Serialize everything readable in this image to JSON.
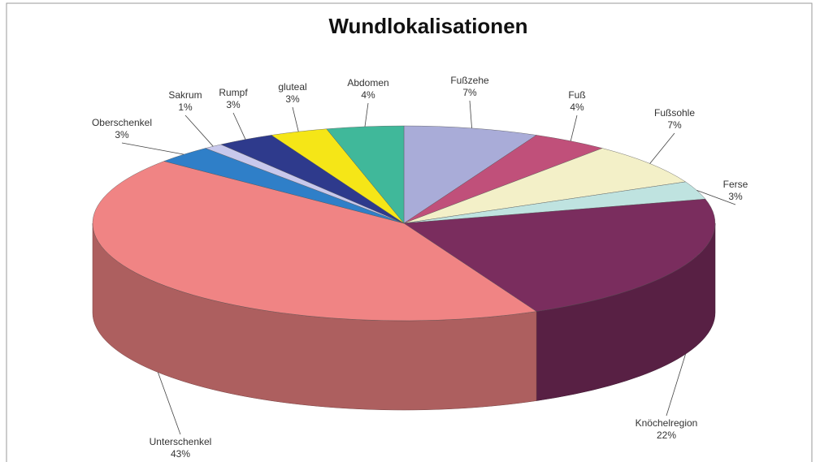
{
  "chart_data": {
    "type": "pie3d",
    "title": "Wundlokalisationen",
    "categories": [
      "Fußzehe",
      "Fuß",
      "Fußsohle",
      "Ferse",
      "Knöchelregion",
      "Unterschenkel",
      "Oberschenkel",
      "Sakrum",
      "Rumpf",
      "gluteal",
      "Abdomen"
    ],
    "values": [
      7,
      4,
      7,
      3,
      22,
      43,
      3,
      1,
      3,
      3,
      4
    ],
    "value_labels": [
      "7%",
      "4%",
      "7%",
      "3%",
      "22%",
      "43%",
      "3%",
      "1%",
      "3%",
      "3%",
      "4%"
    ],
    "colors": [
      "#a9acd8",
      "#c0507a",
      "#f3f0c8",
      "#bfe3e0",
      "#7a2d5e",
      "#f08484",
      "#2f7fc8",
      "#c8c8ec",
      "#2e3a8c",
      "#f5e617",
      "#40b89a"
    ]
  }
}
